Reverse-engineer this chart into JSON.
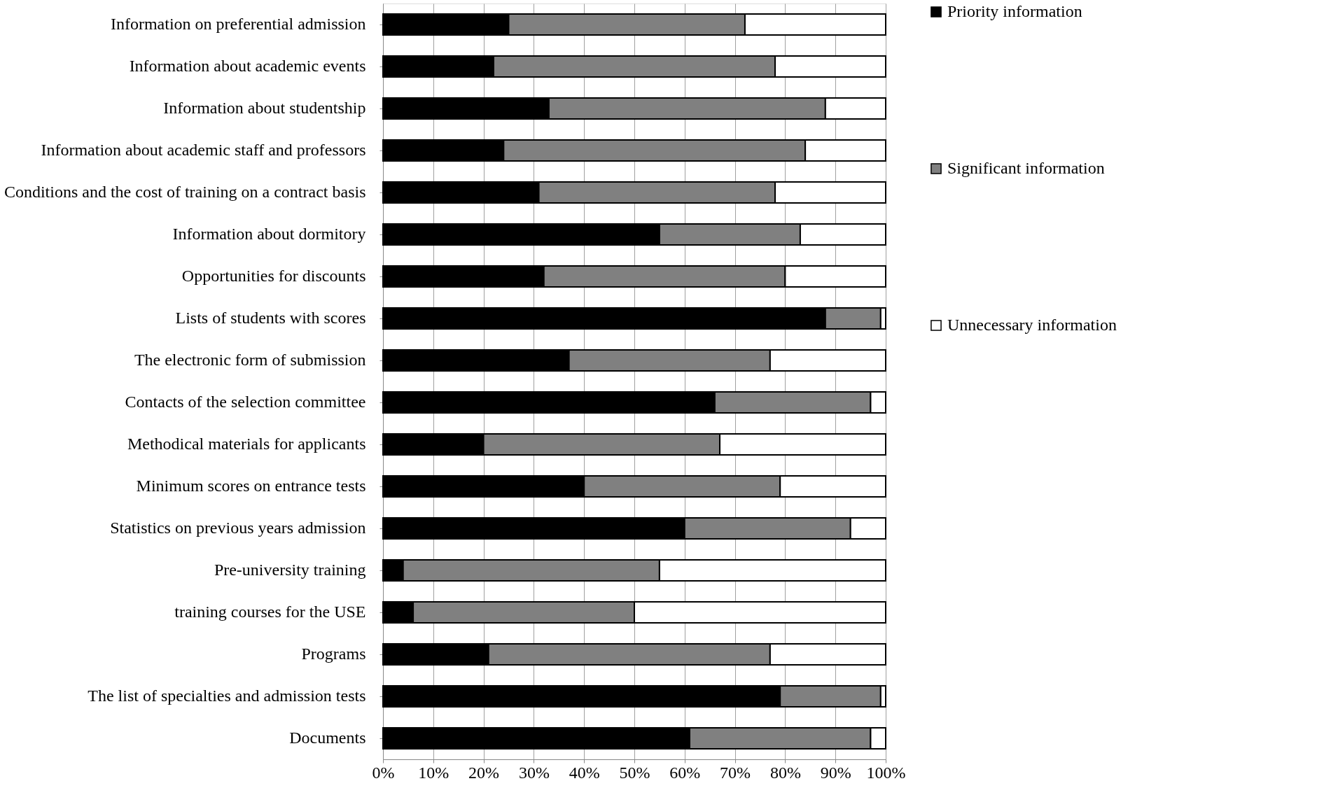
{
  "chart_data": {
    "type": "bar",
    "orientation": "horizontal",
    "stacked": true,
    "categories": [
      "Information on preferential admission",
      "Information about academic events",
      "Information about studentship",
      "Information about academic staff and professors",
      "Conditions and the cost of training on a contract basis ",
      "Information about dormitory",
      "Opportunities for discounts",
      "Lists of students with scores",
      "The electronic form of submission",
      "Contacts of the selection committee",
      "Methodical materials for applicants",
      "Minimum scores on entrance tests",
      "Statistics on previous years admission",
      "Pre-university training",
      "training courses for the USE",
      "Programs",
      "The list of specialties and admission tests",
      "Documents"
    ],
    "series": [
      {
        "name": "Priority information",
        "color": "#000000",
        "values": [
          25,
          22,
          33,
          24,
          31,
          55,
          32,
          88,
          37,
          66,
          20,
          40,
          60,
          4,
          6,
          21,
          79,
          61
        ]
      },
      {
        "name": "Significant information",
        "color": "#808080",
        "values": [
          47,
          56,
          55,
          60,
          47,
          28,
          48,
          11,
          40,
          31,
          47,
          39,
          33,
          51,
          44,
          56,
          20,
          36
        ]
      },
      {
        "name": "Unnecessary information",
        "color": "#ffffff",
        "values": [
          28,
          22,
          12,
          16,
          22,
          17,
          20,
          1,
          23,
          3,
          33,
          21,
          7,
          45,
          50,
          23,
          1,
          3
        ]
      }
    ],
    "xlim": [
      0,
      100
    ],
    "xticks": [
      {
        "value": 0,
        "label": "0%"
      },
      {
        "value": 10,
        "label": "10%"
      },
      {
        "value": 20,
        "label": "20%"
      },
      {
        "value": 30,
        "label": "30%"
      },
      {
        "value": 40,
        "label": "40%"
      },
      {
        "value": 50,
        "label": "50%"
      },
      {
        "value": 60,
        "label": "60%"
      },
      {
        "value": 70,
        "label": "70%"
      },
      {
        "value": 80,
        "label": "80%"
      },
      {
        "value": 90,
        "label": "90%"
      },
      {
        "value": 100,
        "label": "100%"
      }
    ],
    "grid": "x",
    "legend": "right"
  }
}
